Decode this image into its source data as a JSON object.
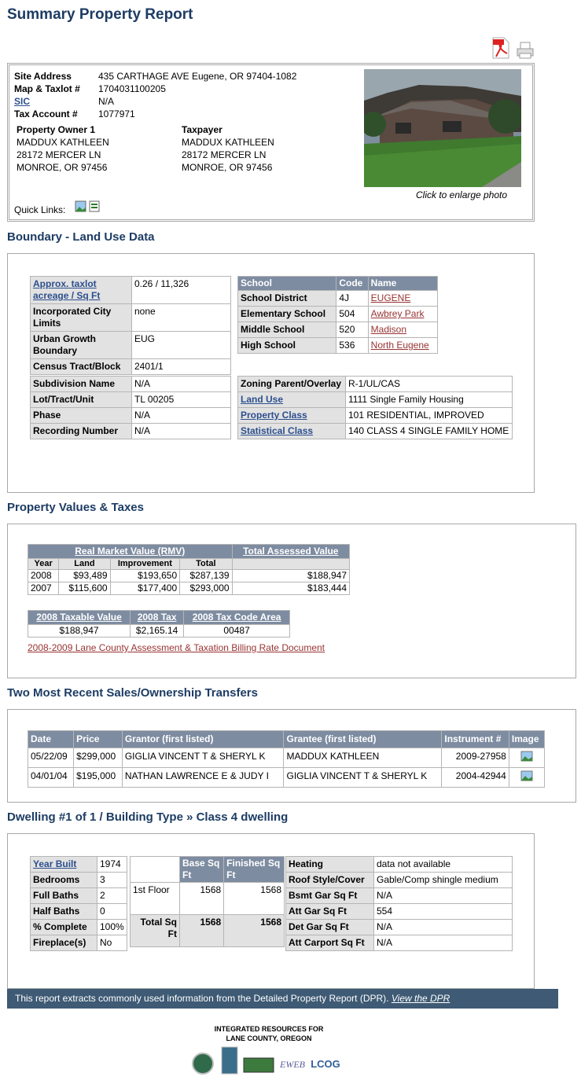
{
  "header": {
    "title": "Summary Property Report"
  },
  "site": {
    "fields": [
      [
        "Site Address",
        "435 CARTHAGE AVE Eugene, OR 97404-1082"
      ],
      [
        "Map & Taxlot #",
        "1704031100205"
      ],
      [
        "SIC",
        "N/A"
      ],
      [
        "Tax Account #",
        "1077971"
      ]
    ],
    "owner": {
      "heading": "Property Owner 1",
      "lines": [
        "MADDUX KATHLEEN",
        "28172 MERCER LN",
        "MONROE, OR 97456"
      ]
    },
    "taxpayer": {
      "heading": "Taxpayer",
      "lines": [
        "MADDUX KATHLEEN",
        "28172 MERCER LN",
        "MONROE, OR 97456"
      ]
    },
    "photo_caption": "Click to enlarge photo",
    "quick_links": "Quick Links:"
  },
  "boundary": {
    "title": "Boundary - Land Use Data",
    "land": [
      [
        "Approx. taxlot acreage / Sq Ft",
        "0.26 / 11,326"
      ],
      [
        "Incorporated City Limits",
        "none"
      ],
      [
        "Urban Growth Boundary",
        "EUG"
      ],
      [
        "Census Tract/Block",
        "2401/1"
      ]
    ],
    "schools": {
      "header": [
        "School",
        "Code",
        "Name"
      ],
      "rows": [
        [
          "School District",
          "4J",
          "EUGENE"
        ],
        [
          "Elementary School",
          "504",
          "Awbrey Park"
        ],
        [
          "Middle School",
          "520",
          "Madison"
        ],
        [
          "High School",
          "536",
          "North Eugene"
        ]
      ]
    },
    "subdivision": [
      [
        "Subdivision Name",
        "N/A"
      ],
      [
        "Lot/Tract/Unit",
        "TL 00205"
      ],
      [
        "Phase",
        "N/A"
      ],
      [
        "Recording Number",
        "N/A"
      ]
    ],
    "zoning": [
      [
        "Zoning Parent/Overlay",
        "R-1/UL/CAS"
      ],
      [
        "Land Use",
        "1111 Single Family Housing"
      ],
      [
        "Property Class",
        "101 RESIDENTIAL, IMPROVED"
      ],
      [
        "Statistical Class",
        "140 CLASS 4 SINGLE FAMILY HOME"
      ]
    ]
  },
  "values": {
    "title": "Property Values & Taxes",
    "rmv_header": "Real Market Value (RMV)",
    "tav_header": "Total Assessed Value",
    "columns": [
      "Year",
      "Land",
      "Improvement",
      "Total"
    ],
    "rows": [
      [
        "2008",
        "$93,489",
        "$193,650",
        "$287,139",
        "$188,947"
      ],
      [
        "2007",
        "$115,600",
        "$177,400",
        "$293,000",
        "$183,444"
      ]
    ],
    "tax_header": [
      "2008 Taxable Value",
      "2008 Tax",
      "2008 Tax Code Area"
    ],
    "tax_row": [
      "$188,947",
      "$2,165.14",
      "00487"
    ],
    "billing_link": "2008-2009 Lane County Assessment & Taxation Billing Rate Document"
  },
  "sales": {
    "title": "Two Most Recent Sales/Ownership Transfers",
    "header": [
      "Date",
      "Price",
      "Grantor (first listed)",
      "Grantee (first listed)",
      "Instrument #",
      "Image"
    ],
    "rows": [
      [
        "05/22/09",
        "$299,000",
        "GIGLIA VINCENT T & SHERYL K",
        "MADDUX KATHLEEN",
        "2009-27958"
      ],
      [
        "04/01/04",
        "$195,000",
        "NATHAN LAWRENCE E & JUDY I",
        "GIGLIA VINCENT T & SHERYL K",
        "2004-42944"
      ]
    ]
  },
  "dwelling": {
    "title": "Dwelling #1 of 1 / Building Type » Class 4 dwelling",
    "basics": [
      [
        "Year Built",
        "1974"
      ],
      [
        "Bedrooms",
        "3"
      ],
      [
        "Full Baths",
        "2"
      ],
      [
        "Half Baths",
        "0"
      ],
      [
        "% Complete",
        "100%"
      ],
      [
        "Fireplace(s)",
        "No"
      ]
    ],
    "area_header": [
      "Base Sq Ft",
      "Finished Sq Ft"
    ],
    "area_rows": [
      [
        "1st Floor",
        "1568",
        "1568"
      ],
      [
        "Total Sq Ft",
        "1568",
        "1568"
      ]
    ],
    "systems": [
      [
        "Heating",
        "data not available"
      ],
      [
        "Roof Style/Cover",
        "Gable/Comp shingle medium"
      ],
      [
        "Bsmt Gar Sq Ft",
        "N/A"
      ],
      [
        "Att Gar Sq Ft",
        "554"
      ],
      [
        "Det Gar Sq Ft",
        "N/A"
      ],
      [
        "Att Carport Sq Ft",
        "N/A"
      ]
    ]
  },
  "footer": {
    "note": "This report extracts commonly used information from the Detailed Property Report (DPR).",
    "link": "View the DPR",
    "org": [
      "INTEGRATED RESOURCES FOR",
      "LANE COUNTY, OREGON"
    ],
    "logos": [
      "EWEB",
      "LCOG"
    ]
  }
}
